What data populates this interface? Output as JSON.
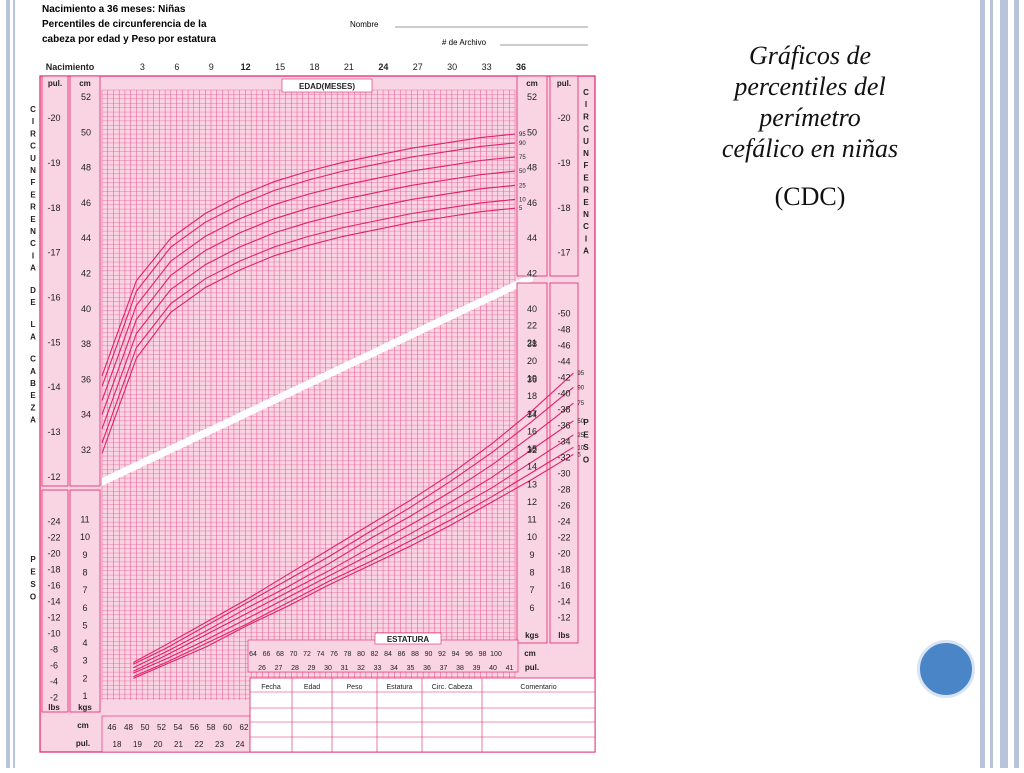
{
  "slide": {
    "caption_lines": [
      "Gráficos de",
      "percentiles del",
      "perímetro",
      "cefálico en niñas"
    ],
    "source": "(CDC)"
  },
  "header": {
    "title_lines": [
      "Nacimiento a 36 meses: Niñas",
      "Percentiles de circunferencia de la",
      "cabeza por edad y Peso por estatura"
    ],
    "nombre_label": "Nombre",
    "archivo_label": "# de Archivo"
  },
  "labels": {
    "nacimiento": "Nacimiento",
    "edad": "EDAD(MESES)",
    "estatura": "ESTATURA",
    "pul": "pul.",
    "cm": "cm",
    "kgs": "kgs",
    "lbs": "lbs",
    "left_vertical_head": "CIRCUNFERENCIA DE LA CABEZA",
    "right_vertical_head": "CIRCUNFERENCIA",
    "peso_vertical": "PESO"
  },
  "colors": {
    "chart": "#e0226b",
    "grid": "#e8528a",
    "paper": "#f9d4e2"
  },
  "table": {
    "headers": [
      "Fecha",
      "Edad",
      "Peso",
      "Estatura",
      "Circ. Cabeza",
      "Comentario"
    ]
  },
  "chart_data": [
    {
      "type": "line",
      "title": "Percentiles de circunferencia de la cabeza por edad",
      "xlabel": "EDAD(MESES)",
      "ylabel": "cm",
      "x": [
        0,
        3,
        6,
        9,
        12,
        15,
        18,
        21,
        24,
        27,
        30,
        33,
        36
      ],
      "x_ticks": [
        "Nacimiento",
        "3",
        "6",
        "9",
        "12",
        "15",
        "18",
        "21",
        "24",
        "27",
        "30",
        "33",
        "36"
      ],
      "ylim_cm": [
        30,
        52
      ],
      "cm_ticks": [
        32,
        34,
        36,
        38,
        40,
        42,
        44,
        46,
        48,
        50,
        52
      ],
      "in_ticks": [
        12,
        13,
        14,
        15,
        16,
        17,
        18,
        19,
        20
      ],
      "series": [
        {
          "name": "95",
          "values": [
            36.2,
            41.6,
            44.0,
            45.4,
            46.4,
            47.2,
            47.8,
            48.3,
            48.7,
            49.1,
            49.4,
            49.7,
            49.9
          ]
        },
        {
          "name": "90",
          "values": [
            35.6,
            41.0,
            43.5,
            44.9,
            45.9,
            46.7,
            47.3,
            47.8,
            48.2,
            48.6,
            48.9,
            49.2,
            49.4
          ]
        },
        {
          "name": "75",
          "values": [
            34.8,
            40.2,
            42.7,
            44.1,
            45.1,
            45.9,
            46.5,
            47.0,
            47.4,
            47.8,
            48.1,
            48.4,
            48.6
          ]
        },
        {
          "name": "50",
          "values": [
            34.0,
            39.4,
            41.9,
            43.3,
            44.3,
            45.1,
            45.7,
            46.2,
            46.6,
            47.0,
            47.3,
            47.6,
            47.8
          ]
        },
        {
          "name": "25",
          "values": [
            33.2,
            38.6,
            41.1,
            42.5,
            43.5,
            44.3,
            44.9,
            45.4,
            45.8,
            46.2,
            46.5,
            46.8,
            47.0
          ]
        },
        {
          "name": "10",
          "values": [
            32.4,
            37.8,
            40.3,
            41.7,
            42.7,
            43.5,
            44.1,
            44.6,
            45.0,
            45.4,
            45.7,
            46.0,
            46.2
          ]
        },
        {
          "name": "5",
          "values": [
            31.8,
            37.2,
            39.8,
            41.2,
            42.2,
            43.0,
            43.6,
            44.1,
            44.5,
            44.9,
            45.2,
            45.5,
            45.7
          ]
        }
      ]
    },
    {
      "type": "line",
      "title": "Peso por estatura",
      "xlabel": "ESTATURA",
      "ylabel": "kgs",
      "x": [
        46,
        50,
        55,
        60,
        65,
        70,
        75,
        80,
        85,
        90,
        95,
        100
      ],
      "xlim_cm": [
        44,
        102
      ],
      "bottom_cm_ticks": [
        "46",
        "48",
        "50",
        "52",
        "54",
        "56",
        "58",
        "60",
        "62"
      ],
      "bottom_in_ticks": [
        "18",
        "19",
        "20",
        "21",
        "22",
        "23",
        "24"
      ],
      "top_cm_ticks": [
        "64",
        "66",
        "68",
        "70",
        "72",
        "74",
        "76",
        "78",
        "80",
        "82",
        "84",
        "86",
        "88",
        "90",
        "92",
        "94",
        "96",
        "98",
        "100"
      ],
      "top_in_ticks": [
        "26",
        "27",
        "28",
        "29",
        "30",
        "31",
        "32",
        "33",
        "34",
        "35",
        "36",
        "37",
        "38",
        "39",
        "40",
        "41"
      ],
      "ylim_kg": [
        1,
        23
      ],
      "left_kg_ticks": [
        1,
        2,
        3,
        4,
        5,
        6,
        7,
        8,
        9,
        10,
        11
      ],
      "left_lb_ticks": [
        2,
        4,
        6,
        8,
        10,
        12,
        14,
        16,
        18,
        20,
        22,
        24
      ],
      "right_kg_ticks": [
        6,
        7,
        8,
        9,
        10,
        11,
        12,
        13,
        14,
        15,
        16,
        17,
        18,
        19,
        20,
        21,
        22
      ],
      "right_lb_ticks": [
        12,
        14,
        16,
        18,
        20,
        22,
        24,
        26,
        28,
        30,
        32,
        34,
        36,
        38,
        40,
        42,
        44,
        46,
        48,
        50
      ],
      "series": [
        {
          "name": "95",
          "values": [
            2.9,
            3.9,
            5.2,
            6.5,
            7.9,
            9.3,
            10.7,
            12.1,
            13.6,
            15.3,
            17.2,
            19.3
          ]
        },
        {
          "name": "90",
          "values": [
            2.8,
            3.7,
            5.0,
            6.3,
            7.6,
            8.9,
            10.3,
            11.7,
            13.2,
            14.8,
            16.6,
            18.5
          ]
        },
        {
          "name": "75",
          "values": [
            2.6,
            3.5,
            4.7,
            6.0,
            7.2,
            8.5,
            9.9,
            11.2,
            12.6,
            14.1,
            15.8,
            17.6
          ]
        },
        {
          "name": "50",
          "values": [
            2.4,
            3.3,
            4.5,
            5.7,
            6.9,
            8.1,
            9.4,
            10.7,
            12.0,
            13.4,
            15.0,
            16.6
          ]
        },
        {
          "name": "25",
          "values": [
            2.3,
            3.1,
            4.2,
            5.4,
            6.6,
            7.8,
            9.0,
            10.2,
            11.5,
            12.8,
            14.3,
            15.8
          ]
        },
        {
          "name": "10",
          "values": [
            2.1,
            2.9,
            4.0,
            5.1,
            6.3,
            7.5,
            8.6,
            9.8,
            11.0,
            12.3,
            13.7,
            15.1
          ]
        },
        {
          "name": "5",
          "values": [
            2.0,
            2.8,
            3.8,
            5.0,
            6.1,
            7.3,
            8.4,
            9.5,
            10.7,
            12.0,
            13.3,
            14.7
          ]
        }
      ]
    }
  ]
}
